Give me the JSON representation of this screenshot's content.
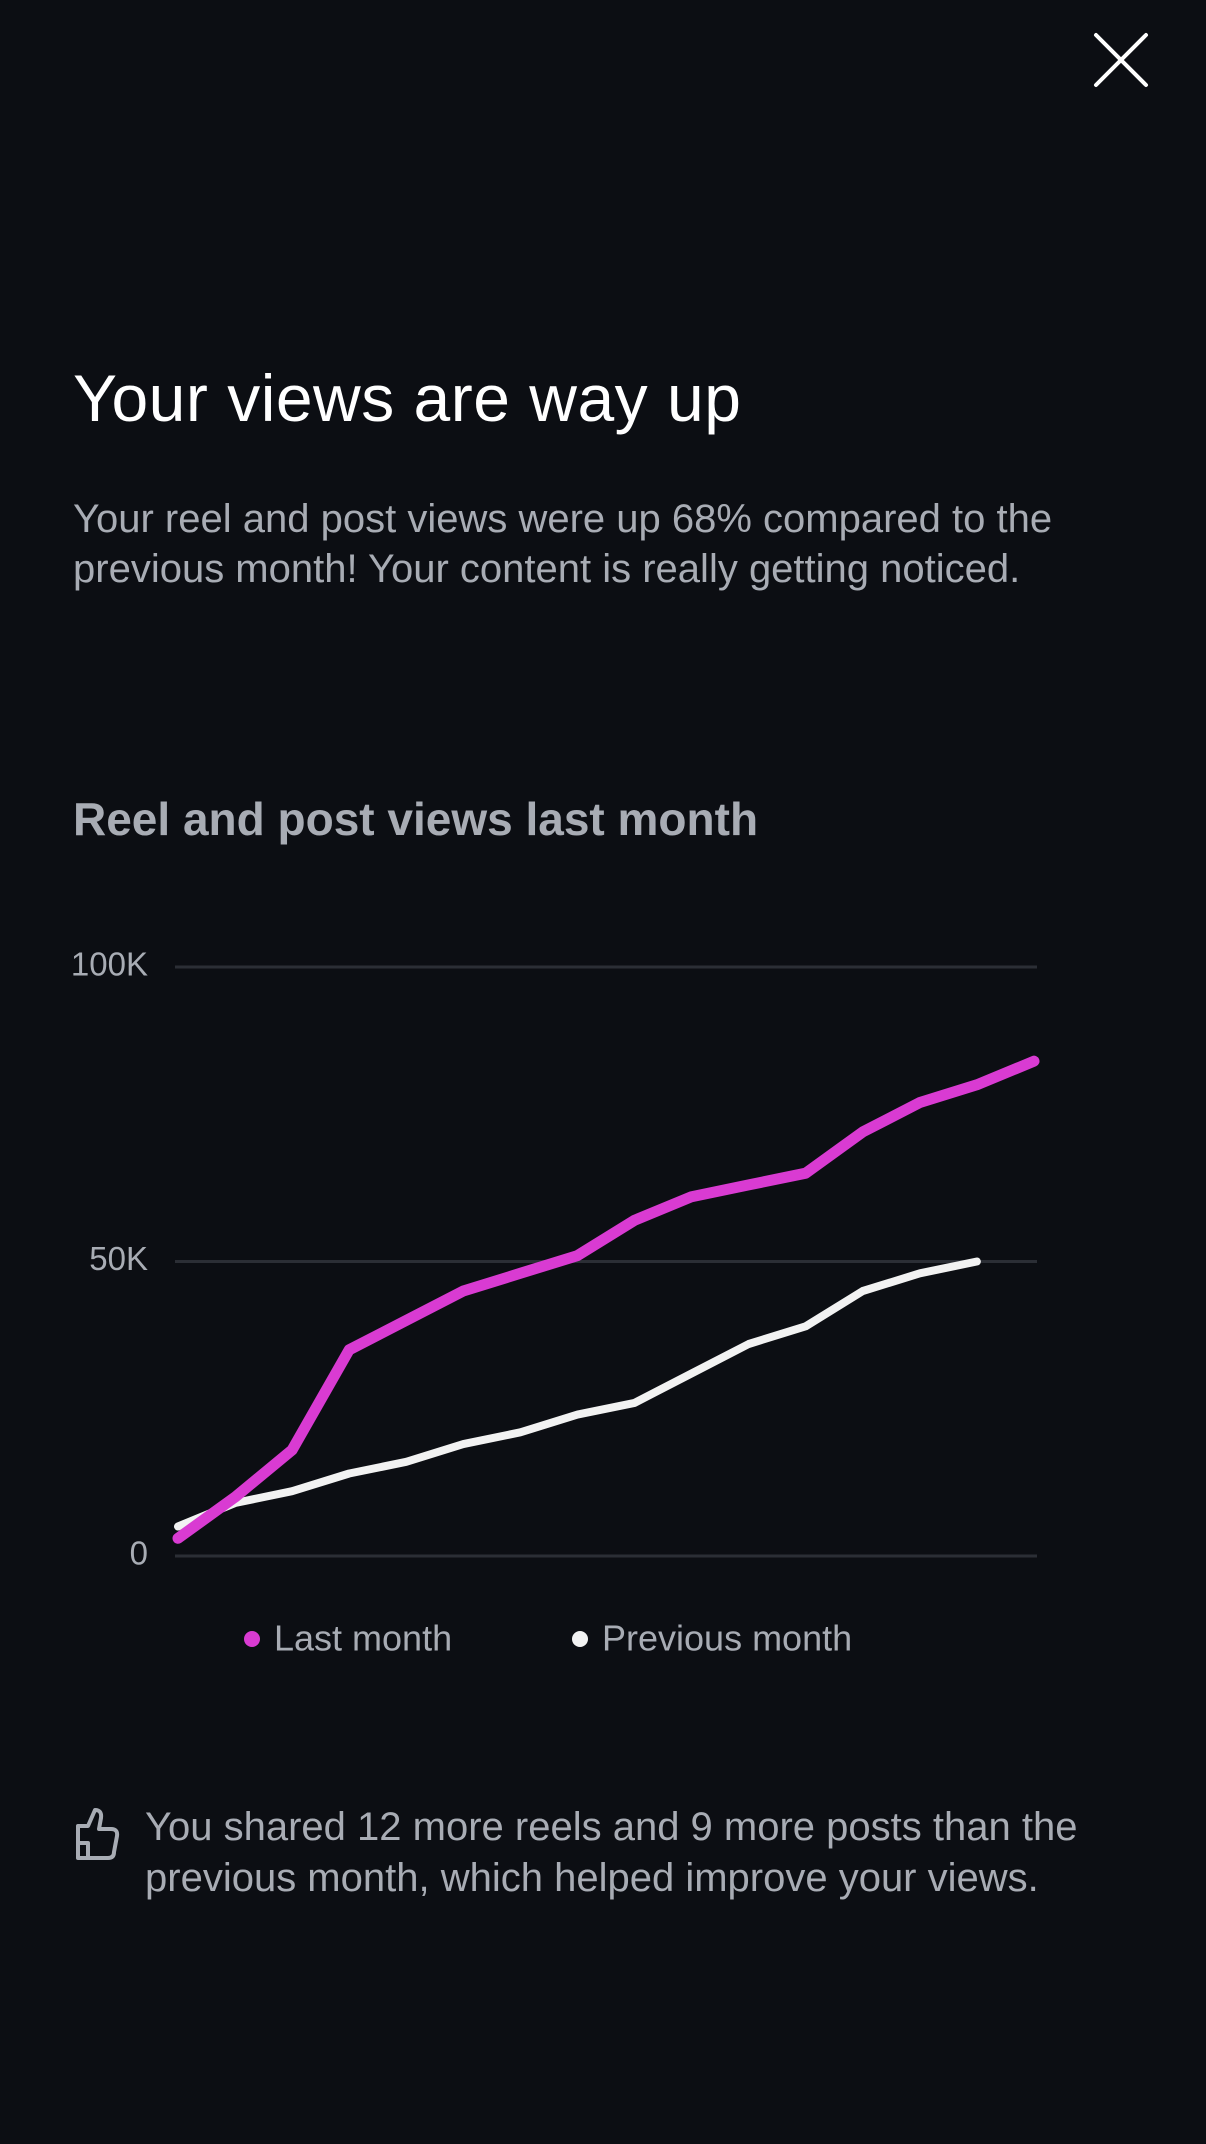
{
  "title": "Your views are way up",
  "description": "Your reel and post views were up 68% compared to the previous month! Your content is really getting noticed.",
  "chart_data": {
    "type": "line",
    "title": "Reel and post views last month",
    "categories": [
      null,
      null,
      null,
      null,
      null,
      null,
      null,
      null,
      null,
      null,
      null,
      null,
      null,
      null,
      null,
      null
    ],
    "series": [
      {
        "name": "Last month",
        "color": "#d93bd2",
        "values": [
          3000,
          10000,
          18000,
          35000,
          40000,
          45000,
          48000,
          51000,
          57000,
          61000,
          63000,
          65000,
          72000,
          77000,
          80000,
          84000
        ]
      },
      {
        "name": "Previous month",
        "color": "#f2f2f2",
        "values": [
          5000,
          9000,
          11000,
          14000,
          16000,
          19000,
          21000,
          24000,
          26000,
          31000,
          36000,
          39000,
          45000,
          48000,
          50000,
          null
        ]
      }
    ],
    "ylim": [
      0,
      100000
    ],
    "yticks": [
      0,
      {
        "value": 50000,
        "label": "50K"
      },
      {
        "value": 100000,
        "label": "100K"
      }
    ],
    "grid": true
  },
  "footer": {
    "text": "You shared 12 more reels and 9 more posts than the previous month, which helped improve your views."
  }
}
